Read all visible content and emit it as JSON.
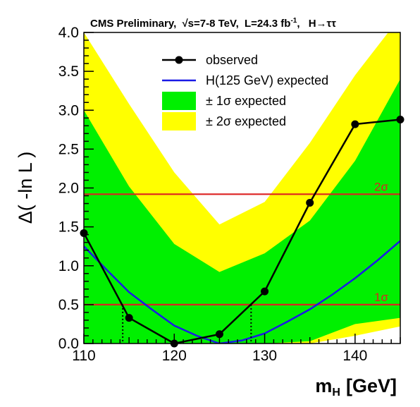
{
  "chart_data": {
    "type": "line",
    "header": {
      "prefix": "CMS Preliminary,",
      "sqrt_symbol": "√",
      "energy": "s=7-8 TeV,",
      "lumi_text": "L=24.3 fb",
      "lumi_exp": "-1",
      "comma": ",",
      "channel": "H→ττ"
    },
    "xlabel": {
      "main": "m",
      "sub": "H",
      "unit": "[GeV]"
    },
    "ylabel": "Δ( -ln L )",
    "xlim": [
      110,
      145
    ],
    "ylim": [
      0,
      4.0
    ],
    "xticks": [
      {
        "value": 110,
        "label": "110"
      },
      {
        "value": 120,
        "label": "120"
      },
      {
        "value": 130,
        "label": "130"
      },
      {
        "value": 140,
        "label": "140"
      }
    ],
    "yticks": [
      {
        "value": 0.0,
        "label": "0.0"
      },
      {
        "value": 0.5,
        "label": "0.5"
      },
      {
        "value": 1.0,
        "label": "1.0"
      },
      {
        "value": 1.5,
        "label": "1.5"
      },
      {
        "value": 2.0,
        "label": "2.0"
      },
      {
        "value": 2.5,
        "label": "2.5"
      },
      {
        "value": 3.0,
        "label": "3.0"
      },
      {
        "value": 3.5,
        "label": "3.5"
      },
      {
        "value": 4.0,
        "label": "4.0"
      }
    ],
    "band_2sigma": {
      "x": [
        110,
        115,
        120,
        125,
        130,
        135,
        140,
        145
      ],
      "low": [
        0.4,
        0.14,
        0.0,
        0.0,
        0.0,
        0.0,
        0.1,
        0.22
      ],
      "high": [
        4.0,
        3.08,
        2.2,
        1.53,
        1.82,
        2.58,
        3.45,
        4.2
      ]
    },
    "band_1sigma": {
      "x": [
        110,
        115,
        120,
        125,
        130,
        135,
        140,
        145
      ],
      "low": [
        0.0,
        0.0,
        0.0,
        0.0,
        0.0,
        0.03,
        0.25,
        0.33
      ],
      "high": [
        3.0,
        2.02,
        1.28,
        0.92,
        1.16,
        1.58,
        2.35,
        3.4
      ]
    },
    "series": [
      {
        "name": "observed",
        "color": "#000000",
        "x": [
          110,
          115,
          120,
          125,
          130,
          135,
          140,
          145
        ],
        "y": [
          1.42,
          0.33,
          0.0,
          0.12,
          0.67,
          1.81,
          2.82,
          2.88
        ]
      },
      {
        "name": "H(125 GeV) expected",
        "color": "#1a1ae6",
        "x": [
          110,
          112.5,
          115,
          117.5,
          120,
          122.5,
          125,
          127.5,
          130,
          132.5,
          135,
          137.5,
          140,
          142.5,
          145
        ],
        "y": [
          1.25,
          0.95,
          0.66,
          0.44,
          0.23,
          0.1,
          0.0,
          0.04,
          0.13,
          0.28,
          0.44,
          0.63,
          0.84,
          1.07,
          1.32
        ]
      }
    ],
    "hlines": [
      {
        "y": 0.5,
        "label": "1σ",
        "color": "#dd2222"
      },
      {
        "y": 1.92,
        "label": "2σ",
        "color": "#dd2222"
      }
    ],
    "crossings": [
      {
        "x": 114.3,
        "y": 0.5
      },
      {
        "x": 128.5,
        "y": 0.5
      }
    ],
    "legend": {
      "placement": "top-center",
      "observed": "observed",
      "expected": "H(125 GeV) expected",
      "one_sigma": "± 1σ expected",
      "two_sigma": "± 2σ expected"
    },
    "colors": {
      "band_1sigma": "#00f000",
      "band_2sigma": "#ffff00",
      "axis": "#000000"
    }
  }
}
